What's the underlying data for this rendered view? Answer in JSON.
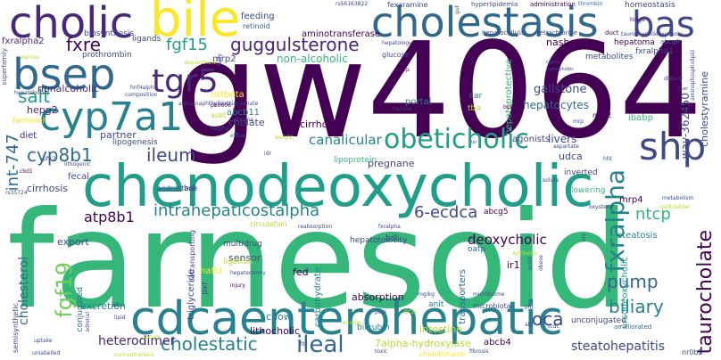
{
  "palette": {
    "darkPurple": "#440154",
    "purple": "#482878",
    "indigo": "#3e4989",
    "blue": "#31688e",
    "teal": "#26828e",
    "sea": "#1f9e89",
    "green": "#35b779",
    "lime": "#6ece58",
    "yellowGreen": "#b5de2b",
    "yellow": "#fde725"
  },
  "words": [
    {
      "text": "farnesoid",
      "weight": 100
    },
    {
      "text": "gw4064",
      "weight": 88
    },
    {
      "text": "chenodeoxycholic",
      "weight": 64
    },
    {
      "text": "cdcaenterohepatic",
      "weight": 56
    },
    {
      "text": "cholestasis",
      "weight": 44
    },
    {
      "text": "cholic",
      "weight": 42
    },
    {
      "text": "bile",
      "weight": 46
    },
    {
      "text": "bas",
      "weight": 38
    },
    {
      "text": "bsep",
      "weight": 40
    },
    {
      "text": "cyp7a1",
      "weight": 36
    },
    {
      "text": "shp",
      "weight": 38
    },
    {
      "text": "tgr5",
      "weight": 32
    },
    {
      "text": "obeticholic",
      "weight": 30
    },
    {
      "text": "fxralpha",
      "weight": 30
    },
    {
      "text": "ileal",
      "weight": 24
    },
    {
      "text": "guggulsterone",
      "weight": 18
    },
    {
      "text": "cholestatic",
      "weight": 18
    },
    {
      "text": "cyp8b1",
      "weight": 18
    },
    {
      "text": "fxre",
      "weight": 18
    },
    {
      "text": "fgf15",
      "weight": 18
    },
    {
      "text": "fgf19",
      "weight": 22
    },
    {
      "text": "salt",
      "weight": 18
    },
    {
      "text": "ileum",
      "weight": 18
    },
    {
      "text": "taurocholate",
      "weight": 18
    },
    {
      "text": "oca",
      "weight": 16
    },
    {
      "text": "biliary",
      "weight": 16
    },
    {
      "text": "pump",
      "weight": 16
    },
    {
      "text": "ntcp",
      "weight": 16
    },
    {
      "text": "int-747",
      "weight": 15
    },
    {
      "text": "intrahepaticostalpha",
      "weight": 15
    },
    {
      "text": "6-ecdca",
      "weight": 15
    },
    {
      "text": "heterodimer",
      "weight": 14
    },
    {
      "text": "steatohepatitis",
      "weight": 14
    },
    {
      "text": "deoxycholic",
      "weight": 13
    },
    {
      "text": "canalicular",
      "weight": 13
    },
    {
      "text": "cholesterol",
      "weight": 13
    },
    {
      "text": "atp8b1",
      "weight": 12
    },
    {
      "text": "gallstone",
      "weight": 12
    },
    {
      "text": "hepatocytes",
      "weight": 12
    },
    {
      "text": "non-alcoholic",
      "weight": 12
    },
    {
      "text": "way-362450",
      "weight": 11
    },
    {
      "text": "cholestyramine",
      "weight": 10
    },
    {
      "text": "nash",
      "weight": 10
    },
    {
      "text": "lithocholic",
      "weight": 10
    },
    {
      "text": "7alpha-hydroxylase",
      "weight": 10
    },
    {
      "text": "chow",
      "weight": 10
    },
    {
      "text": "absorption",
      "weight": 10
    },
    {
      "text": "intestine",
      "weight": 10
    },
    {
      "text": "nonalcoholic",
      "weight": 10
    },
    {
      "text": "livers",
      "weight": 10
    },
    {
      "text": "agonists",
      "weight": 9
    },
    {
      "text": "cholate",
      "weight": 9
    },
    {
      "text": "pregnane",
      "weight": 9
    },
    {
      "text": "cirrhotic",
      "weight": 9
    },
    {
      "text": "partner",
      "weight": 9
    },
    {
      "text": "hepg2",
      "weight": 9
    },
    {
      "text": "cirrhosis",
      "weight": 9
    },
    {
      "text": "export",
      "weight": 9
    },
    {
      "text": "sensor",
      "weight": 9
    },
    {
      "text": "ir1",
      "weight": 9
    },
    {
      "text": "fed",
      "weight": 9
    },
    {
      "text": "excretion",
      "weight": 9
    },
    {
      "text": "udca",
      "weight": 9
    },
    {
      "text": "abcb4",
      "weight": 8
    },
    {
      "text": "diet",
      "weight": 8
    },
    {
      "text": "fecal",
      "weight": 8
    },
    {
      "text": "portal",
      "weight": 8
    },
    {
      "text": "mrp4",
      "weight": 8
    },
    {
      "text": "nafld",
      "weight": 8
    },
    {
      "text": "ibabp",
      "weight": 8
    },
    {
      "text": "steatosis",
      "weight": 8
    },
    {
      "text": "transporters",
      "weight": 8
    },
    {
      "text": "triglyceride",
      "weight": 8
    },
    {
      "text": "carbohydrate",
      "weight": 8
    },
    {
      "text": "hepatoprotective",
      "weight": 8
    },
    {
      "text": "ursodeoxycholic",
      "weight": 8
    },
    {
      "text": "aminotransferase",
      "weight": 8
    },
    {
      "text": "fxralpha2",
      "weight": 8
    },
    {
      "text": "prothrombin",
      "weight": 7
    },
    {
      "text": "biosynthesis",
      "weight": 7
    },
    {
      "text": "feeding",
      "weight": 7
    },
    {
      "text": "ligands",
      "weight": 7
    },
    {
      "text": "mrp2",
      "weight": 7
    },
    {
      "text": "abcb11",
      "weight": 7
    },
    {
      "text": "ostbeta",
      "weight": 7
    },
    {
      "text": "lipoprotein",
      "weight": 7
    },
    {
      "text": "lipogenesis",
      "weight": 7
    },
    {
      "text": "hepatoma",
      "weight": 7
    },
    {
      "text": "metabolites",
      "weight": 7
    },
    {
      "text": "hepatotoxicity",
      "weight": 7
    },
    {
      "text": "multidrug",
      "weight": 7
    },
    {
      "text": "inverted",
      "weight": 7
    },
    {
      "text": "abcg5",
      "weight": 7
    },
    {
      "text": "androstane",
      "weight": 6
    },
    {
      "text": "farnesol",
      "weight": 6
    },
    {
      "text": "anit",
      "weight": 6
    },
    {
      "text": "pxr",
      "weight": 6
    },
    {
      "text": "oatp",
      "weight": 6
    },
    {
      "text": "tba",
      "weight": 6
    },
    {
      "text": "car",
      "weight": 6
    },
    {
      "text": "bdl",
      "weight": 6
    },
    {
      "text": "hdl",
      "weight": 6
    },
    {
      "text": "ligation",
      "weight": 6
    },
    {
      "text": "lowering",
      "weight": 6
    },
    {
      "text": "bilirubin",
      "weight": 6
    },
    {
      "text": "conjugated",
      "weight": 6
    },
    {
      "text": "unconjugated",
      "weight": 6
    },
    {
      "text": "semisynthetic",
      "weight": 6
    },
    {
      "text": "ameliorated",
      "weight": 5
    },
    {
      "text": "cholelithiasis",
      "weight": 5
    },
    {
      "text": "fxralpha1",
      "weight": 6
    },
    {
      "text": "fexaramine",
      "weight": 5
    },
    {
      "text": "hyperlipidemia",
      "weight": 5
    },
    {
      "text": "administration",
      "weight": 5
    },
    {
      "text": "hepatocellular",
      "weight": 5
    },
    {
      "text": "tetrachloride",
      "weight": 5
    },
    {
      "text": "retinoid",
      "weight": 5
    },
    {
      "text": "taurochenodeoxycholic",
      "weight": 4
    },
    {
      "text": "homeostasis",
      "weight": 5
    },
    {
      "text": "abcg8",
      "weight": 5
    },
    {
      "text": "duct",
      "weight": 5
    },
    {
      "text": "hinge",
      "weight": 4
    },
    {
      "text": "thrombin",
      "weight": 4
    },
    {
      "text": "hepatology",
      "weight": 4
    },
    {
      "text": "glucose",
      "weight": 5
    },
    {
      "text": "taurine",
      "weight": 4
    },
    {
      "text": "alpha-naphthylisothiocyanate",
      "weight": 4
    },
    {
      "text": "hnf4alpha",
      "weight": 4
    },
    {
      "text": "composition",
      "weight": 4
    },
    {
      "text": "superfamily",
      "weight": 4
    },
    {
      "text": "sequestrant",
      "weight": 4
    },
    {
      "text": "alanine",
      "weight": 4
    },
    {
      "text": "hepatobiliary",
      "weight": 4
    },
    {
      "text": "plasma",
      "weight": 4
    },
    {
      "text": "4alpha",
      "weight": 4
    },
    {
      "text": "asbt",
      "weight": 5
    },
    {
      "text": "icp",
      "weight": 4
    },
    {
      "text": "dietary",
      "weight": 4
    },
    {
      "text": "aminophospholipid",
      "weight": 4
    },
    {
      "text": "weight",
      "weight": 4
    },
    {
      "text": "efflux",
      "weight": 4
    },
    {
      "text": "idr",
      "weight": 4
    },
    {
      "text": "lithogenic",
      "weight": 4
    },
    {
      "text": "cbd1",
      "weight": 4
    },
    {
      "text": "rs35724",
      "weight": 4
    },
    {
      "text": "pfic2",
      "weight": 4
    },
    {
      "text": "mdr2",
      "weight": 5
    },
    {
      "text": "byler",
      "weight": 4
    },
    {
      "text": "mrp",
      "weight": 4
    },
    {
      "text": "hfd",
      "weight": 4
    },
    {
      "text": "aspartate",
      "weight": 4
    },
    {
      "text": "solute",
      "weight": 4
    },
    {
      "text": "synthesis",
      "weight": 4
    },
    {
      "text": "metabolism",
      "weight": 4
    },
    {
      "text": "gallbladder",
      "weight": 4
    },
    {
      "text": "oxysterol",
      "weight": 4
    },
    {
      "text": "obese",
      "weight": 4
    },
    {
      "text": "acids",
      "weight": 4
    },
    {
      "text": "ald",
      "weight": 4
    },
    {
      "text": "pfic",
      "weight": 4
    },
    {
      "text": "tcdc",
      "weight": 4
    },
    {
      "text": "microbiome",
      "weight": 4
    },
    {
      "text": "microbiota",
      "weight": 5
    },
    {
      "text": "nrs",
      "weight": 4
    },
    {
      "text": "circulation",
      "weight": 5
    },
    {
      "text": "reabsorption",
      "weight": 4
    },
    {
      "text": "fxralpha",
      "weight": 4
    },
    {
      "text": "pool",
      "weight": 4
    },
    {
      "text": "cotransporting",
      "weight": 6
    },
    {
      "text": "hepatectomy",
      "weight": 4
    },
    {
      "text": "injury",
      "weight": 4
    },
    {
      "text": "energy",
      "weight": 4
    },
    {
      "text": "dca",
      "weight": 5
    },
    {
      "text": "mg/kg",
      "weight": 4
    },
    {
      "text": "serum",
      "weight": 4
    },
    {
      "text": "uptake",
      "weight": 4
    },
    {
      "text": "unlabelled",
      "weight": 4
    },
    {
      "text": "adrenal",
      "weight": 4
    },
    {
      "text": "alt",
      "weight": 4
    },
    {
      "text": "lipid",
      "weight": 4
    },
    {
      "text": "concentrations",
      "weight": 4
    },
    {
      "text": "fibrosis",
      "weight": 4
    },
    {
      "text": "toxic",
      "weight": 4
    },
    {
      "text": "fit",
      "weight": 4
    },
    {
      "text": "nr0b2",
      "weight": 5
    },
    {
      "text": "gut",
      "weight": 4
    },
    {
      "text": "rs56163822",
      "weight": 4
    },
    {
      "text": "fatty",
      "weight": 4
    },
    {
      "text": "pb0606",
      "weight": 4
    },
    {
      "text": "hydrophobic",
      "weight": 3
    },
    {
      "text": "cyp3a",
      "weight": 3
    },
    {
      "text": "lxr",
      "weight": 3
    },
    {
      "text": "liver",
      "weight": 3
    }
  ]
}
